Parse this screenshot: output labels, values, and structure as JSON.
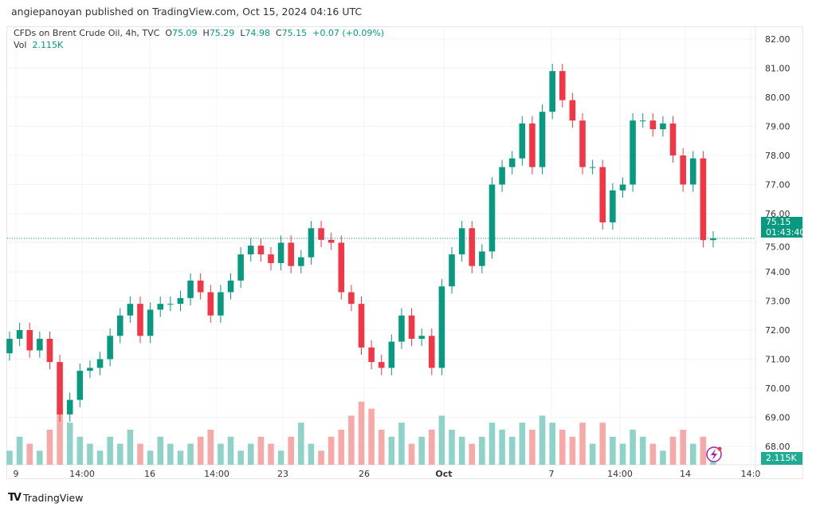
{
  "header": {
    "publisher": "angiepanoyan published on TradingView.com, Oct 15, 2024 04:16 UTC"
  },
  "legend": {
    "symbol": "CFDs on Brent Crude Oil, 4h, TVC",
    "o_label": "O",
    "o": "75.09",
    "h_label": "H",
    "h": "75.29",
    "l_label": "L",
    "l": "74.98",
    "c_label": "C",
    "c": "75.15",
    "change": "+0.07 (+0.09%)",
    "vol_label": "Vol",
    "vol": "2.115K"
  },
  "last_price": {
    "price": "75.15",
    "countdown": "01:43:40"
  },
  "volume_label": "2.115K",
  "footer": {
    "brand": "TradingView"
  },
  "colors": {
    "up": "#089981",
    "down": "#f23645",
    "vol_up": "#8fd3c8",
    "vol_down": "#f7a9a7"
  },
  "chart_data": {
    "type": "candlestick",
    "title": "CFDs on Brent Crude Oil, 4h, TVC",
    "ylim": [
      68,
      82
    ],
    "y_ticks": [
      "82.00",
      "81.00",
      "80.00",
      "79.00",
      "78.00",
      "77.00",
      "76.00",
      "75.00",
      "74.00",
      "73.00",
      "72.00",
      "71.00",
      "70.00",
      "69.00",
      "68.00"
    ],
    "x_ticks": [
      "9",
      "14:00",
      "16",
      "14:00",
      "23",
      "26",
      "Oct",
      "7",
      "14:00",
      "14",
      "14:0"
    ],
    "first_open": 71.2,
    "close": [
      71.7,
      72.0,
      71.3,
      71.7,
      70.9,
      69.1,
      69.6,
      70.6,
      70.7,
      71.0,
      71.8,
      72.5,
      72.9,
      71.8,
      72.7,
      72.9,
      72.9,
      73.1,
      73.7,
      73.3,
      72.5,
      73.3,
      73.7,
      74.6,
      74.9,
      74.6,
      74.3,
      75.0,
      74.2,
      74.5,
      75.5,
      75.1,
      75.0,
      73.3,
      72.9,
      71.4,
      70.9,
      70.7,
      71.6,
      72.5,
      71.7,
      71.8,
      70.7,
      73.5,
      74.6,
      75.5,
      74.2,
      74.7,
      77.0,
      77.6,
      77.9,
      79.1,
      77.6,
      79.5,
      80.9,
      79.9,
      79.2,
      77.6,
      77.6,
      75.7,
      76.8,
      77.0,
      79.2,
      79.2,
      78.9,
      79.1,
      78.0,
      77.0,
      77.9,
      75.09,
      75.15
    ],
    "volume_k": [
      2,
      4,
      3,
      2,
      5,
      8,
      6,
      4,
      3,
      2,
      4,
      3,
      5,
      3,
      2,
      4,
      3,
      2,
      3,
      4,
      5,
      3,
      4,
      2,
      3,
      4,
      3,
      2,
      4,
      6,
      3,
      2,
      4,
      5,
      7,
      9,
      8,
      5,
      4,
      6,
      3,
      4,
      5,
      7,
      5,
      4,
      3,
      4,
      6,
      5,
      4,
      6,
      5,
      7,
      6,
      5,
      4,
      6,
      3,
      6,
      4,
      3,
      5,
      4,
      3,
      2,
      4,
      5,
      3,
      4,
      2.115
    ]
  }
}
